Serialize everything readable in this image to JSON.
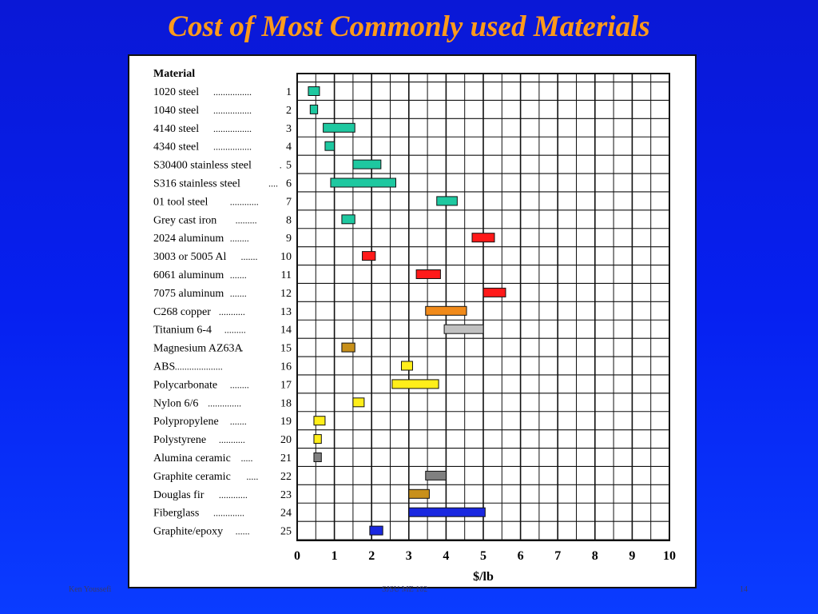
{
  "slide": {
    "title": "Cost of Most Commonly used Materials",
    "footer_left": "Ken Youssefi",
    "footer_center": "SJSU ME 102",
    "footer_right": "14"
  },
  "chart_data": {
    "type": "bar",
    "subtype": "floating-range",
    "header_label": "Material",
    "xlabel": "$/lb",
    "xlim": [
      0,
      10
    ],
    "xticks": [
      0,
      1,
      2,
      3,
      4,
      5,
      6,
      7,
      8,
      9,
      10
    ],
    "grid": true,
    "items": [
      {
        "num": "1",
        "name": "1020 steel",
        "leader": "................",
        "range": [
          0.3,
          0.6
        ],
        "color": "#1ec8a0"
      },
      {
        "num": "2",
        "name": "1040 steel",
        "leader": "................",
        "range": [
          0.35,
          0.55
        ],
        "color": "#1ec8a0"
      },
      {
        "num": "3",
        "name": "4140 steel",
        "leader": "................",
        "range": [
          0.7,
          1.55
        ],
        "color": "#1ec8a0"
      },
      {
        "num": "4",
        "name": "4340 steel",
        "leader": "................",
        "range": [
          0.75,
          1.0
        ],
        "color": "#1ec8a0"
      },
      {
        "num": "5",
        "name": "S30400 stainless steel",
        "leader": ".",
        "range": [
          1.5,
          2.25
        ],
        "color": "#1ec8a0"
      },
      {
        "num": "6",
        "name": "S316 stainless steel",
        "leader": "....",
        "range": [
          0.9,
          2.65
        ],
        "color": "#1ec8a0"
      },
      {
        "num": "7",
        "name": "01 tool steel",
        "leader": "............",
        "range": [
          3.75,
          4.3
        ],
        "color": "#1ec8a0"
      },
      {
        "num": "8",
        "name": "Grey cast iron",
        "leader": ".........",
        "range": [
          1.2,
          1.55
        ],
        "color": "#1ec8a0"
      },
      {
        "num": "9",
        "name": "2024 aluminum",
        "leader": "........",
        "range": [
          4.7,
          5.3
        ],
        "color": "#ff1a1a"
      },
      {
        "num": "10",
        "name": "3003 or 5005 Al",
        "leader": ".......",
        "range": [
          1.75,
          2.1
        ],
        "color": "#ff1a1a"
      },
      {
        "num": "11",
        "name": "6061 aluminum",
        "leader": ".......",
        "range": [
          3.2,
          3.85
        ],
        "color": "#ff1a1a"
      },
      {
        "num": "12",
        "name": "7075 aluminum",
        "leader": ".......",
        "range": [
          5.0,
          5.6
        ],
        "color": "#ff1a1a"
      },
      {
        "num": "13",
        "name": "C268 copper",
        "leader": "...........",
        "range": [
          3.45,
          4.55
        ],
        "color": "#f08a1a"
      },
      {
        "num": "14",
        "name": "Titanium 6-4",
        "leader": ".........",
        "range": [
          3.95,
          5.0
        ],
        "color": "#c0c0c0"
      },
      {
        "num": "15",
        "name": "Magnesium AZ63A",
        "leader": ".",
        "range": [
          1.2,
          1.55
        ],
        "color": "#c8901a"
      },
      {
        "num": "16",
        "name": "ABS",
        "leader": "....................",
        "range": [
          2.8,
          3.1
        ],
        "color": "#ffee1a"
      },
      {
        "num": "17",
        "name": "Polycarbonate",
        "leader": "........",
        "range": [
          2.55,
          3.8
        ],
        "color": "#ffee1a"
      },
      {
        "num": "18",
        "name": "Nylon 6/6",
        "leader": "..............",
        "range": [
          1.5,
          1.8
        ],
        "color": "#ffee1a"
      },
      {
        "num": "19",
        "name": "Polypropylene",
        "leader": ".......",
        "range": [
          0.45,
          0.75
        ],
        "color": "#ffee1a"
      },
      {
        "num": "20",
        "name": "Polystyrene",
        "leader": "...........",
        "range": [
          0.45,
          0.65
        ],
        "color": "#ffee1a"
      },
      {
        "num": "21",
        "name": "Alumina ceramic",
        "leader": ".....",
        "range": [
          0.45,
          0.65
        ],
        "color": "#808080"
      },
      {
        "num": "22",
        "name": "Graphite ceramic",
        "leader": ".....",
        "range": [
          3.45,
          4.0
        ],
        "color": "#808080"
      },
      {
        "num": "23",
        "name": "Douglas fir",
        "leader": "............",
        "range": [
          3.0,
          3.55
        ],
        "color": "#c8901a"
      },
      {
        "num": "24",
        "name": "Fiberglass",
        "leader": ".............",
        "range": [
          3.0,
          5.05
        ],
        "color": "#1a28e0"
      },
      {
        "num": "25",
        "name": "Graphite/epoxy",
        "leader": "......",
        "range": [
          1.95,
          2.3
        ],
        "color": "#1a28e0"
      }
    ]
  }
}
